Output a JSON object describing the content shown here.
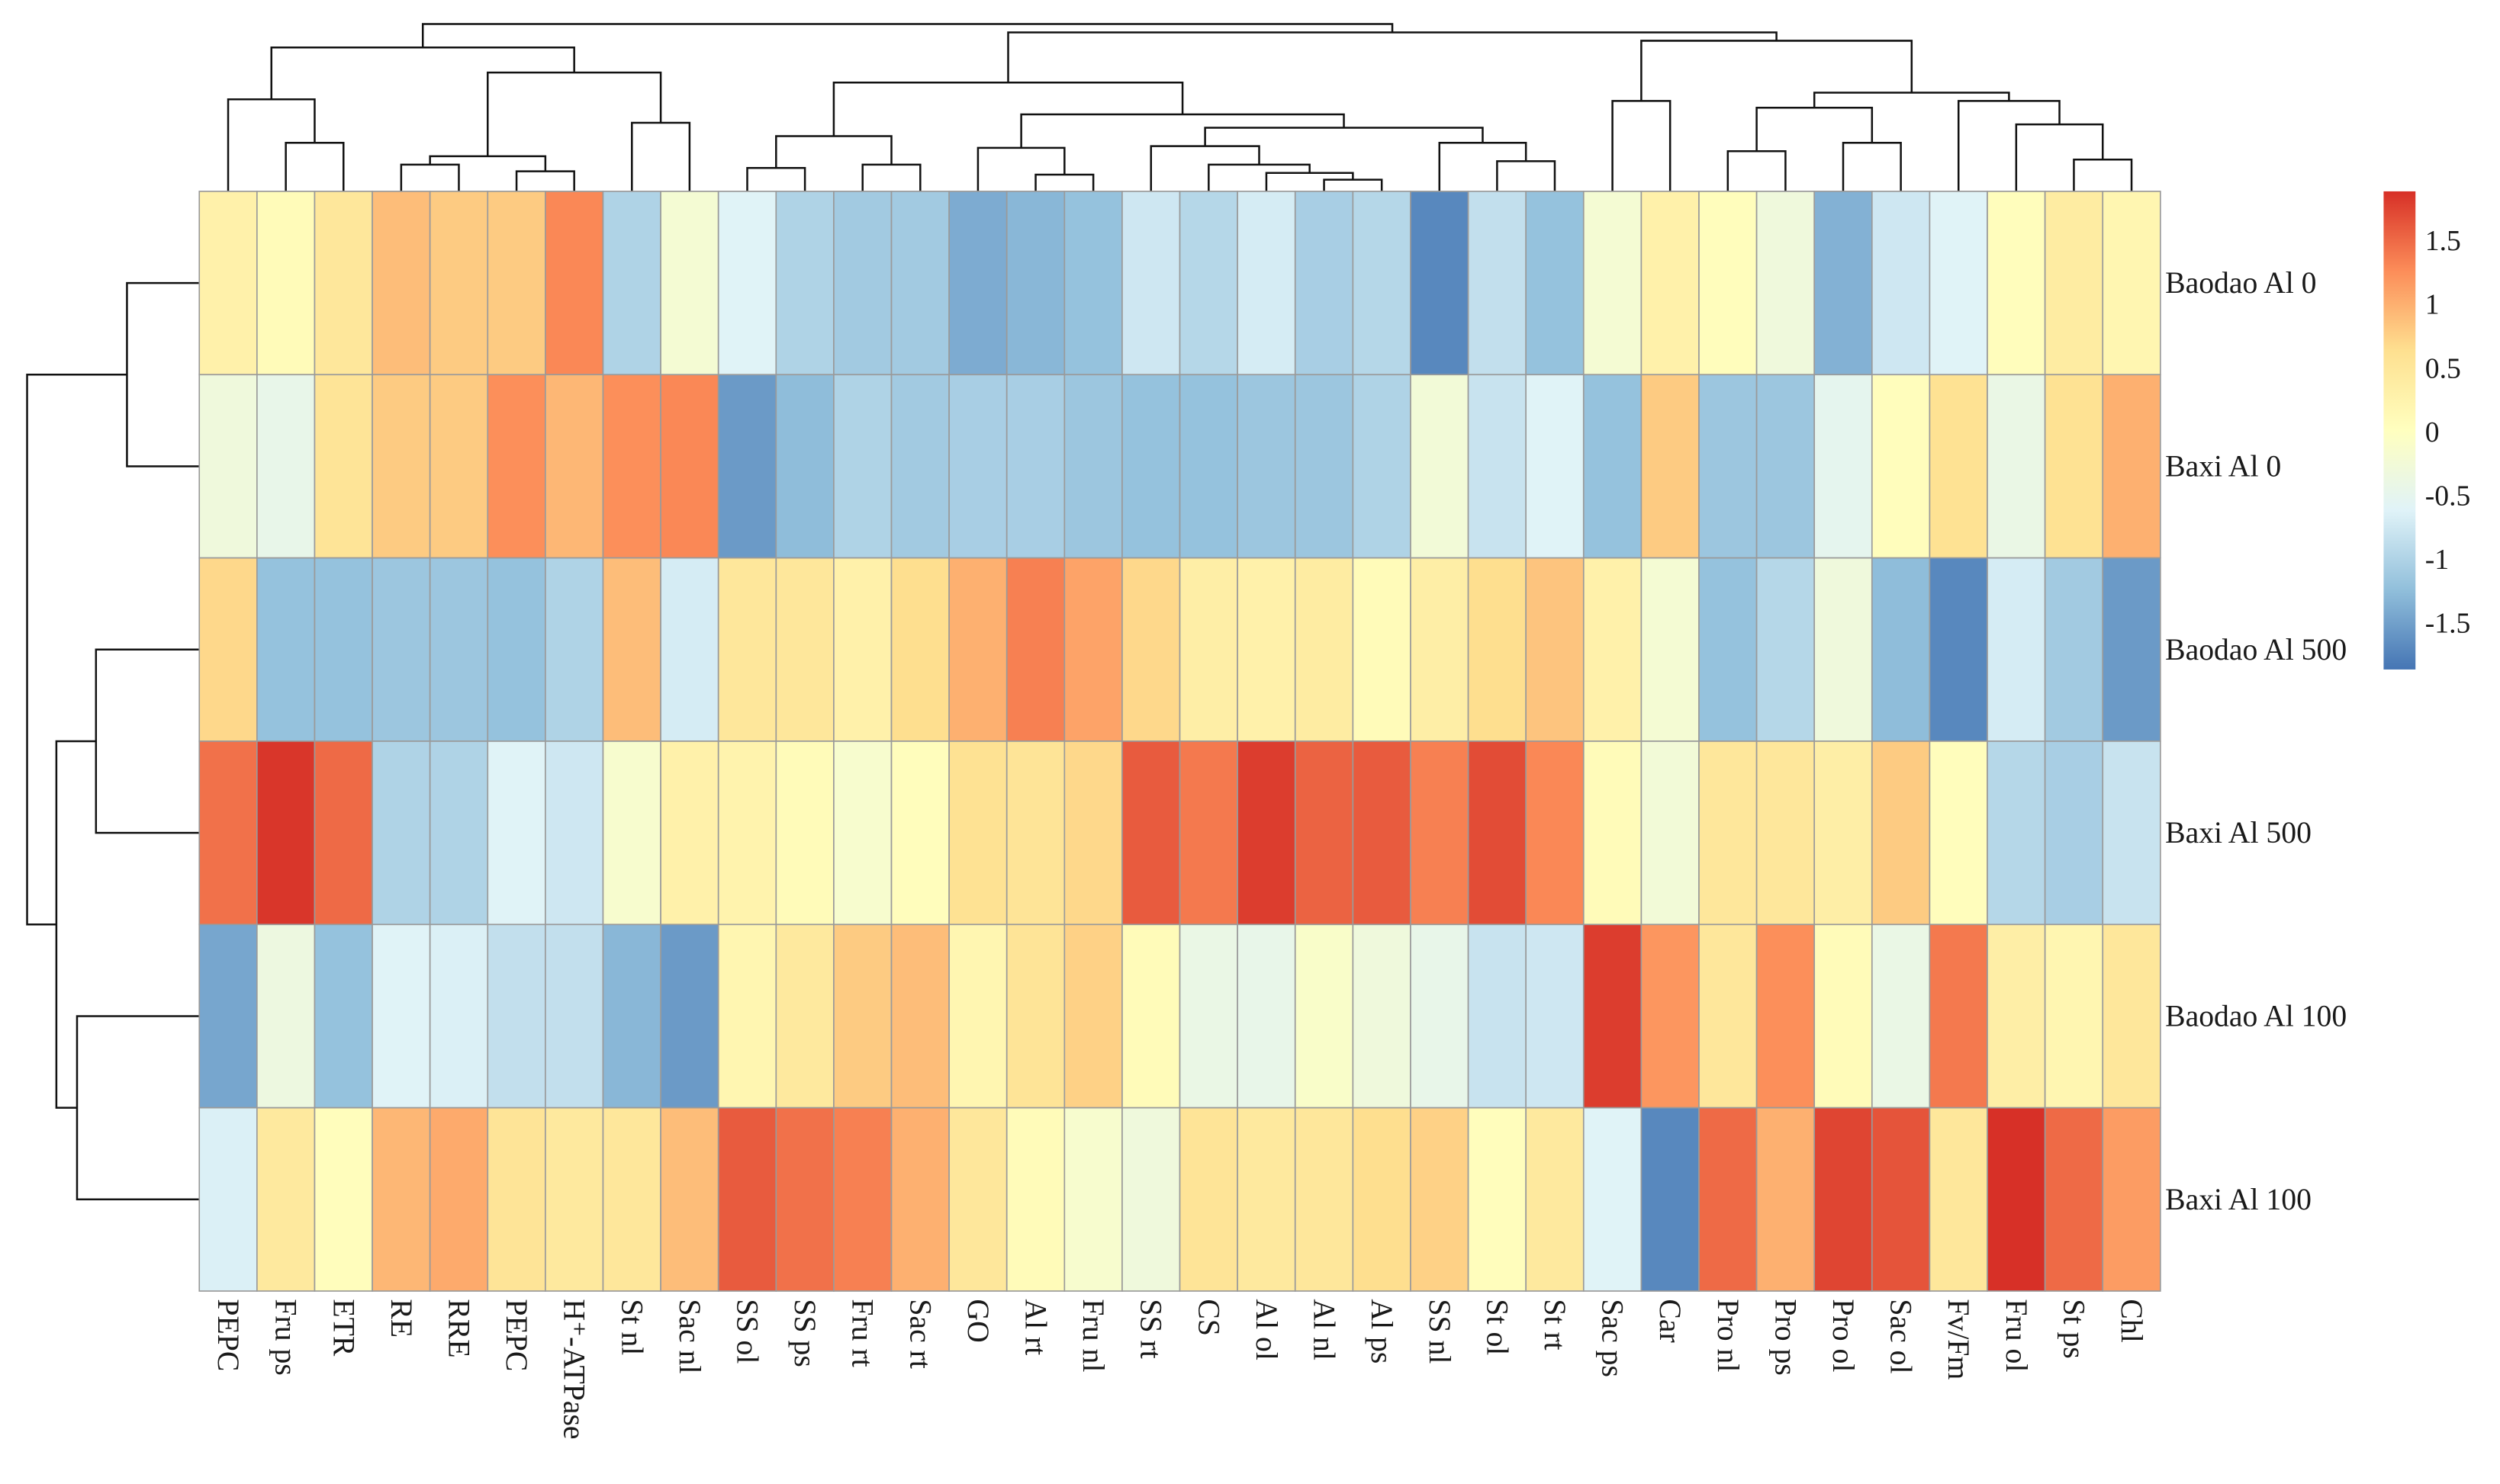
{
  "chart_data": {
    "type": "heatmap",
    "title": "",
    "xlabel": "",
    "ylabel": "",
    "legend": "right",
    "columns": [
      "PEPC",
      "Fru ps",
      "ETR",
      "RE",
      "RRE",
      "PEPC",
      "H⁺-ATPase",
      "St nl",
      "Sac nl",
      "SS ol",
      "SS ps",
      "Fru rt",
      "Sac rt",
      "GO",
      "Al rt",
      "Fru nl",
      "SS rt",
      "CS",
      "Al ol",
      "Al nl",
      "Al ps",
      "SS nl",
      "St ol",
      "St rt",
      "Sac ps",
      "Car",
      "Pro nl",
      "Pro ps",
      "Pro ol",
      "Sac ol",
      "Fv/Fm",
      "Fru ol",
      "St ps",
      "Chl"
    ],
    "rows": [
      "Baodao Al 0",
      "Baxi Al 0",
      "Baodao Al 500",
      "Baxi Al 500",
      "Baodao Al 100",
      "Baxi Al 100"
    ],
    "values": [
      [
        0.3,
        0.1,
        0.5,
        0.9,
        0.8,
        0.8,
        1.3,
        -1.0,
        -0.2,
        -0.6,
        -1.0,
        -1.1,
        -1.1,
        -1.4,
        -1.3,
        -1.2,
        -0.75,
        -0.95,
        -0.7,
        -1.05,
        -0.95,
        -1.7,
        -0.85,
        -1.2,
        -0.2,
        0.3,
        0.05,
        -0.3,
        -1.35,
        -0.75,
        -0.6,
        0.05,
        0.4,
        0.2
      ],
      [
        -0.3,
        -0.45,
        0.55,
        0.8,
        0.8,
        1.25,
        0.95,
        1.25,
        1.3,
        -1.55,
        -1.25,
        -1.0,
        -1.1,
        -1.05,
        -1.05,
        -1.15,
        -1.2,
        -1.2,
        -1.15,
        -1.15,
        -1.0,
        -0.25,
        -0.8,
        -0.6,
        -1.2,
        0.8,
        -1.15,
        -1.15,
        -0.5,
        0.05,
        0.6,
        -0.4,
        0.6,
        1.0
      ],
      [
        0.7,
        -1.2,
        -1.2,
        -1.15,
        -1.15,
        -1.2,
        -1.0,
        0.9,
        -0.7,
        0.5,
        0.5,
        0.3,
        0.65,
        1.0,
        1.35,
        1.1,
        0.7,
        0.35,
        0.3,
        0.4,
        0.1,
        0.35,
        0.65,
        0.85,
        0.3,
        -0.2,
        -1.2,
        -0.95,
        -0.3,
        -1.25,
        -1.7,
        -0.7,
        -1.1,
        -1.55
      ],
      [
        1.45,
        1.85,
        1.5,
        -1.0,
        -1.0,
        -0.6,
        -0.75,
        -0.15,
        0.3,
        0.25,
        0.1,
        -0.15,
        0.05,
        0.6,
        0.55,
        0.7,
        1.6,
        1.4,
        1.8,
        1.55,
        1.6,
        1.35,
        1.7,
        1.3,
        0.1,
        -0.25,
        0.5,
        0.5,
        0.35,
        0.8,
        0.05,
        -0.95,
        -1.05,
        -0.8
      ],
      [
        -1.45,
        -0.35,
        -1.2,
        -0.6,
        -0.65,
        -0.85,
        -0.85,
        -1.3,
        -1.55,
        0.2,
        0.45,
        0.8,
        0.9,
        0.2,
        0.55,
        0.75,
        0.1,
        -0.4,
        -0.45,
        -0.1,
        -0.3,
        -0.45,
        -0.8,
        -0.75,
        1.8,
        1.2,
        0.5,
        1.25,
        0.1,
        -0.4,
        1.4,
        0.35,
        0.2,
        0.5
      ],
      [
        -0.65,
        0.45,
        0.05,
        0.95,
        1.05,
        0.55,
        0.45,
        0.5,
        0.9,
        1.6,
        1.45,
        1.35,
        1.0,
        0.5,
        0.1,
        -0.15,
        -0.3,
        0.55,
        0.45,
        0.5,
        0.65,
        0.75,
        0.05,
        0.45,
        -0.6,
        -1.7,
        1.5,
        1.0,
        1.75,
        1.65,
        0.5,
        1.9,
        1.5,
        1.15
      ]
    ],
    "color_scale": {
      "min": -1.86,
      "max": 1.89,
      "colors": [
        "#4575B4",
        "#91BFDB",
        "#E0F3F8",
        "#FFFFBF",
        "#FEE090",
        "#FC8D59",
        "#D73027"
      ],
      "ticks": [
        1.5,
        1,
        0.5,
        0,
        -0.5,
        -1,
        -1.5
      ],
      "tick_labels": [
        "1.5",
        "1",
        "0.5",
        "0",
        "-0.5",
        "-1",
        "-1.5"
      ]
    },
    "column_dendrogram": {
      "height": 10,
      "children": [
        {
          "height": 8.6,
          "children": [
            {
              "height": 5.5,
              "children": [
                0,
                {
                  "height": 2.9,
                  "children": [
                    1,
                    2
                  ]
                }
              ]
            },
            {
              "height": 7.1,
              "children": [
                {
                  "height": 2.1,
                  "children": [
                    {
                      "height": 1.6,
                      "children": [
                        3,
                        4
                      ]
                    },
                    {
                      "height": 1.2,
                      "children": [
                        5,
                        6
                      ]
                    }
                  ]
                },
                {
                  "height": 4.1,
                  "children": [
                    7,
                    8
                  ]
                }
              ]
            }
          ]
        },
        {
          "height": 9.5,
          "children": [
            {
              "height": 6.5,
              "children": [
                {
                  "height": 3.3,
                  "children": [
                    {
                      "height": 1.4,
                      "children": [
                        9,
                        10
                      ]
                    },
                    {
                      "height": 1.6,
                      "children": [
                        11,
                        12
                      ]
                    }
                  ]
                },
                {
                  "height": 4.6,
                  "children": [
                    {
                      "height": 2.6,
                      "children": [
                        13,
                        {
                          "height": 1.0,
                          "children": [
                            14,
                            15
                          ]
                        }
                      ]
                    },
                    {
                      "height": 3.8,
                      "children": [
                        {
                          "height": 2.7,
                          "children": [
                            16,
                            {
                              "height": 1.6,
                              "children": [
                                17,
                                {
                                  "height": 1.1,
                                  "children": [
                                    18,
                                    {
                                      "height": 0.7,
                                      "children": [
                                        19,
                                        20
                                      ]
                                    }
                                  ]
                                }
                              ]
                            }
                          ]
                        },
                        {
                          "height": 2.9,
                          "children": [
                            21,
                            {
                              "height": 1.8,
                              "children": [
                                22,
                                23
                              ]
                            }
                          ]
                        }
                      ]
                    }
                  ]
                }
              ]
            },
            {
              "height": 9.0,
              "children": [
                {
                  "height": 5.4,
                  "children": [
                    24,
                    25
                  ]
                },
                {
                  "height": 5.9,
                  "children": [
                    {
                      "height": 5.0,
                      "children": [
                        {
                          "height": 2.4,
                          "children": [
                            26,
                            27
                          ]
                        },
                        {
                          "height": 2.9,
                          "children": [
                            28,
                            29
                          ]
                        }
                      ]
                    },
                    {
                      "height": 5.4,
                      "children": [
                        30,
                        {
                          "height": 4.0,
                          "children": [
                            31,
                            {
                              "height": 1.9,
                              "children": [
                                32,
                                33
                              ]
                            }
                          ]
                        }
                      ]
                    }
                  ]
                }
              ]
            }
          ]
        }
      ]
    },
    "row_dendrogram": {
      "height": 10,
      "children": [
        {
          "height": 4.2,
          "children": [
            0,
            1
          ]
        },
        {
          "height": 8.3,
          "children": [
            {
              "height": 6.0,
              "children": [
                2,
                3
              ]
            },
            {
              "height": 7.1,
              "children": [
                4,
                5
              ]
            }
          ]
        }
      ]
    }
  }
}
